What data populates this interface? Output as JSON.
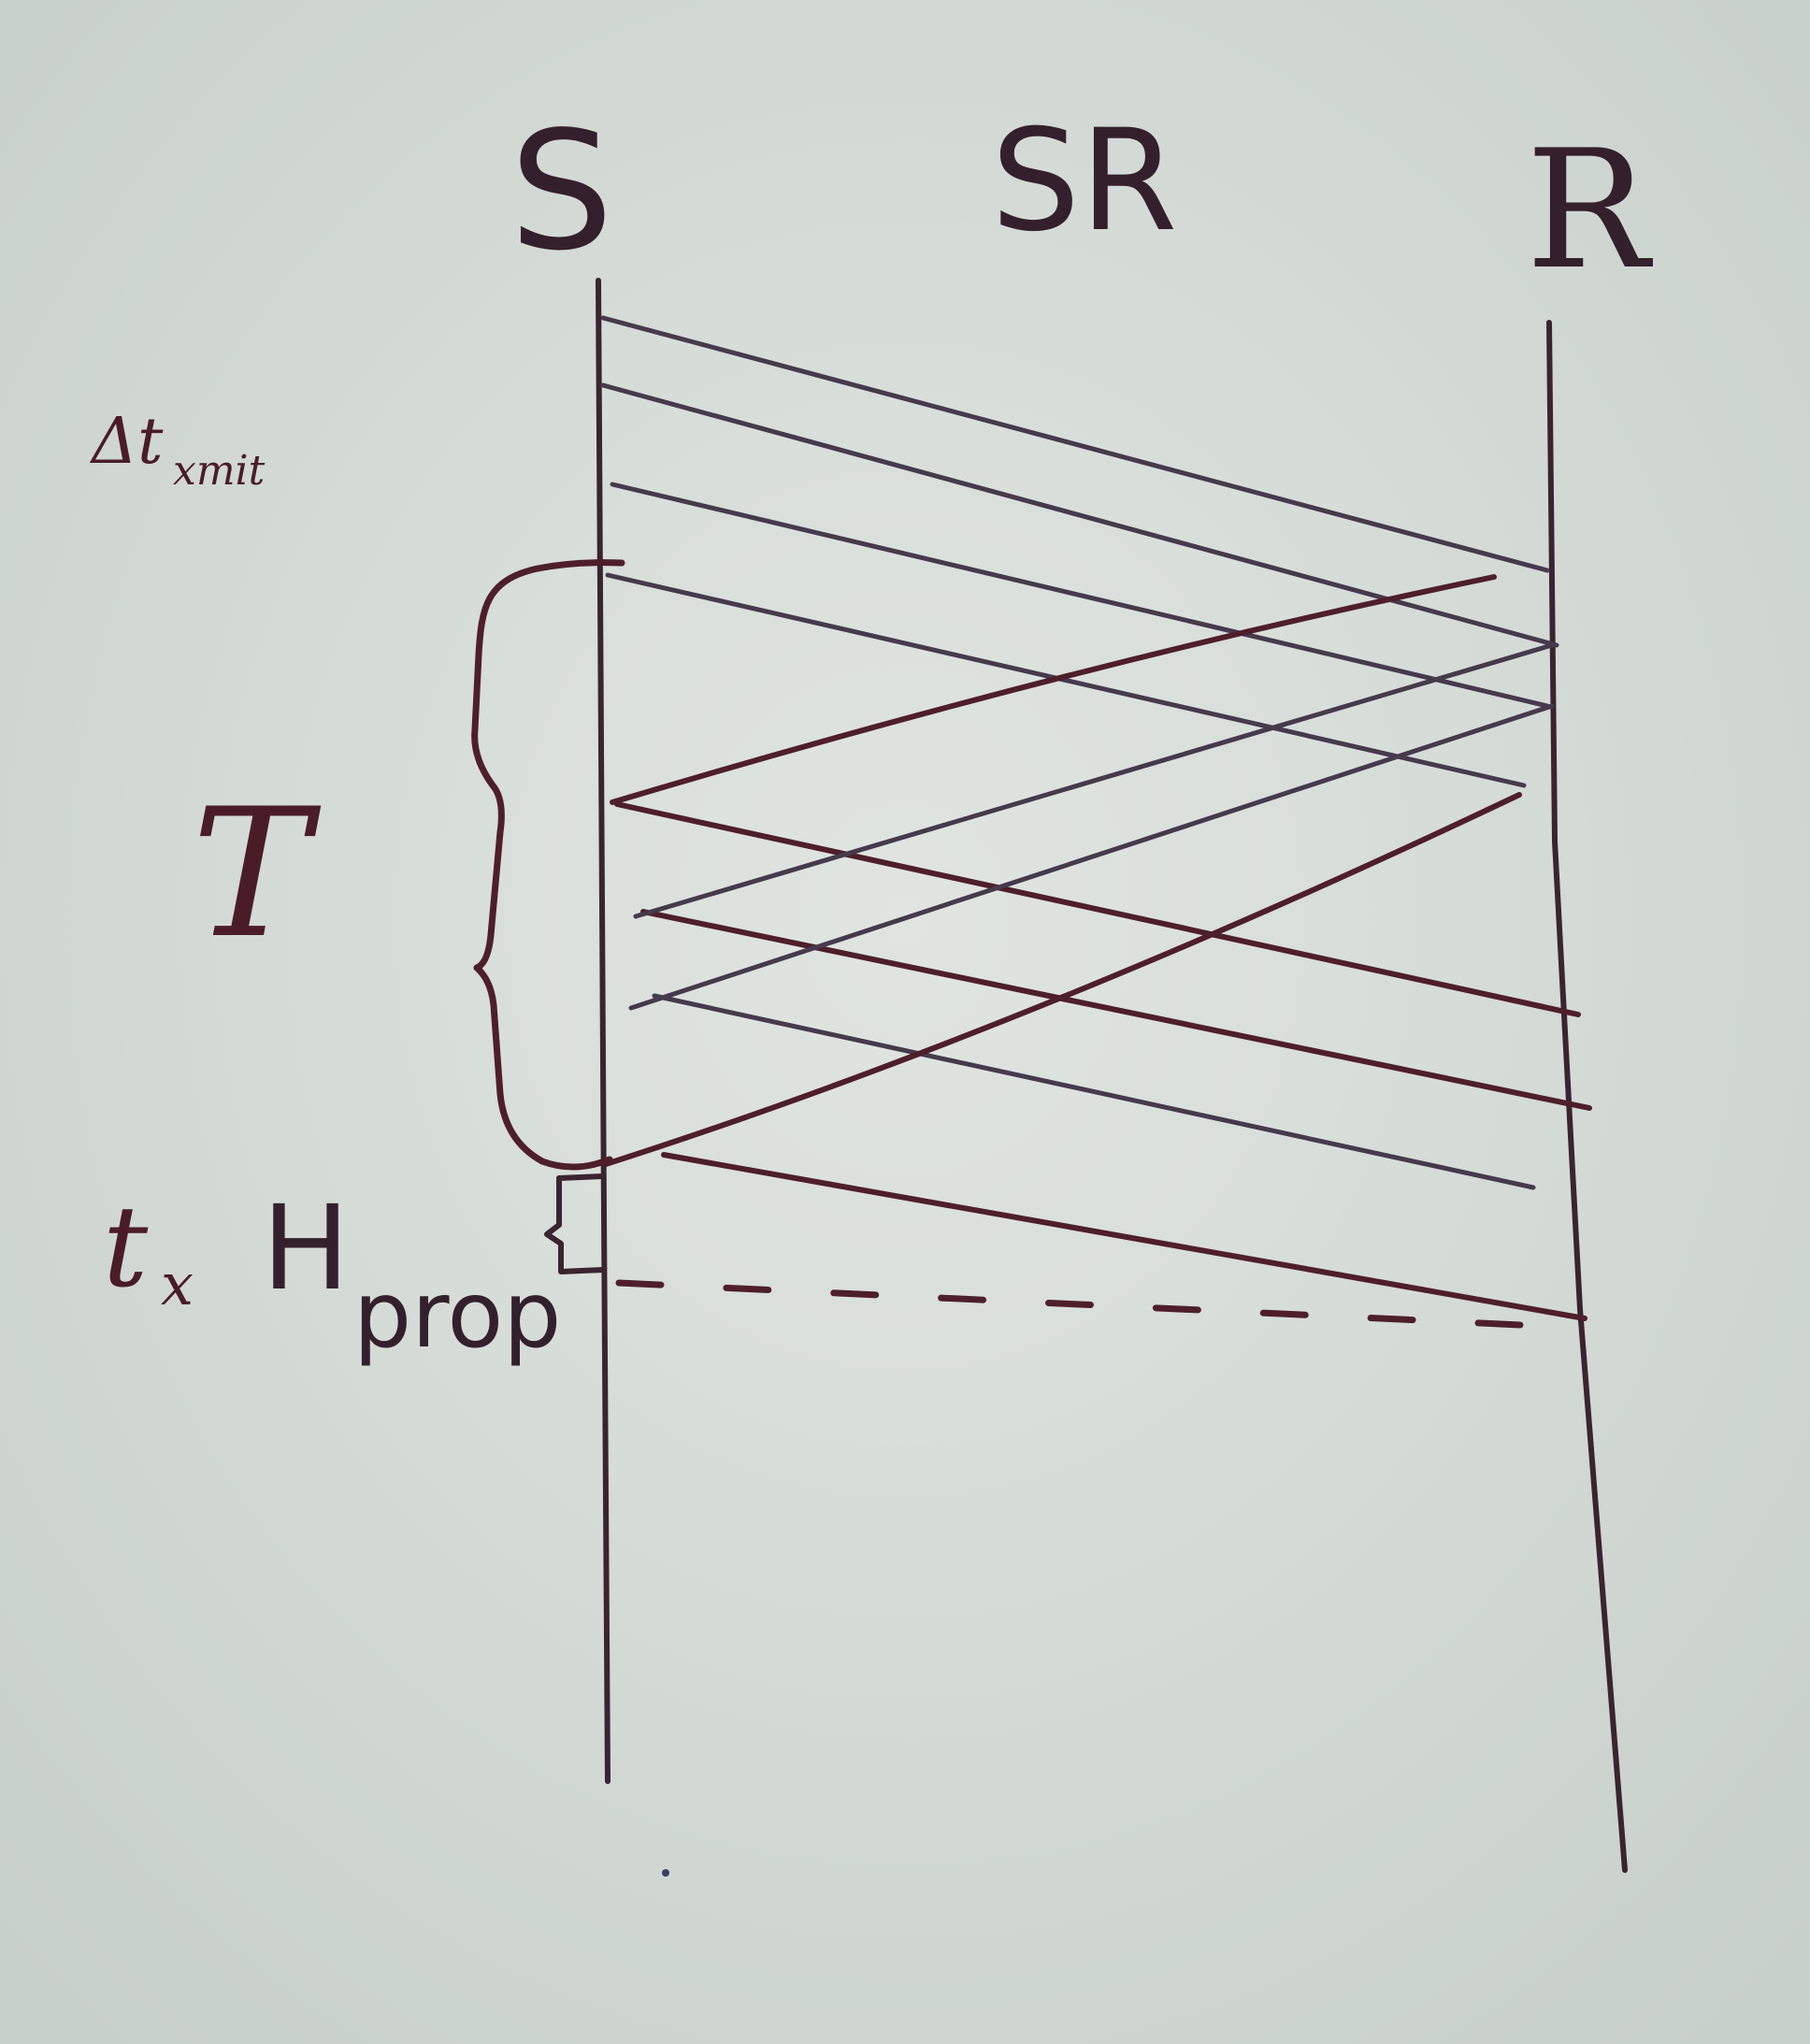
{
  "diagram": {
    "type": "sliding-window timing diagram (handwritten)",
    "nodes": {
      "sender": "S",
      "relay": "SR",
      "receiver": "R"
    },
    "annotations": {
      "transmit_delay": "Δt",
      "transmit_delay_sub": "xmit",
      "window_brace": "T",
      "prop_label_t": "t",
      "prop_label_x": "x",
      "prop_label_h": "H",
      "prop_label_sub": "prop"
    },
    "colors": {
      "paper": "#d7ddd9",
      "ink": "#3a2430",
      "ink_red": "#4e1f2b"
    }
  }
}
